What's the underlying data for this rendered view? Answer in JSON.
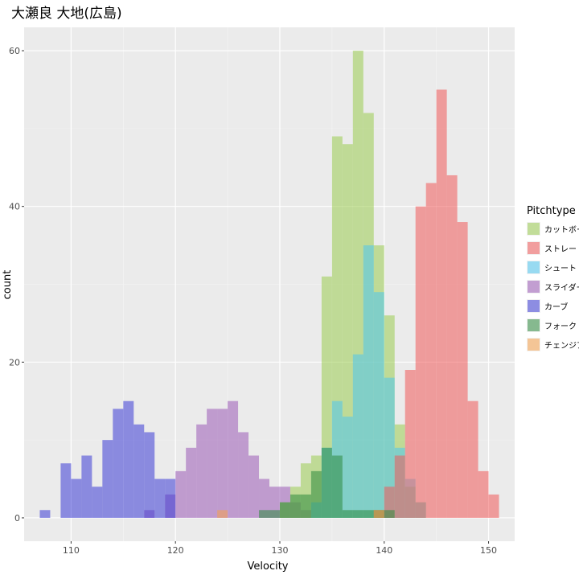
{
  "chart_data": {
    "type": "histogram",
    "title": "大瀬良 大地(広島)",
    "xlabel": "Velocity",
    "ylabel": "count",
    "xlim": [
      105.5,
      152.5
    ],
    "ylim": [
      -3,
      63
    ],
    "x_ticks": [
      110,
      120,
      130,
      140,
      150
    ],
    "y_ticks": [
      0,
      20,
      40,
      60
    ],
    "bin_width": 1,
    "grid": true,
    "legend": {
      "title": "Pitchtype",
      "position": "right"
    },
    "series": [
      {
        "name": "スライダー",
        "color": "#9b59b6",
        "bins": [
          [
            117.5,
            1
          ],
          [
            118.5,
            0
          ],
          [
            119.5,
            3
          ],
          [
            120.5,
            6
          ],
          [
            121.5,
            9
          ],
          [
            122.5,
            12
          ],
          [
            123.5,
            14
          ],
          [
            124.5,
            14
          ],
          [
            125.5,
            15
          ],
          [
            126.5,
            11
          ],
          [
            127.5,
            8
          ],
          [
            128.5,
            5
          ],
          [
            129.5,
            4
          ],
          [
            130.5,
            4
          ],
          [
            131.5,
            2
          ],
          [
            132.5,
            1
          ]
        ]
      },
      {
        "name": "カーブ",
        "color": "#3b3bd6",
        "bins": [
          [
            107.5,
            1
          ],
          [
            109.5,
            7
          ],
          [
            110.5,
            5
          ],
          [
            111.5,
            8
          ],
          [
            112.5,
            4
          ],
          [
            113.5,
            10
          ],
          [
            114.5,
            14
          ],
          [
            115.5,
            15
          ],
          [
            116.5,
            12
          ],
          [
            117.5,
            11
          ],
          [
            118.5,
            5
          ],
          [
            119.5,
            5
          ]
        ]
      },
      {
        "name": "カットボール",
        "color": "#9bcc50",
        "bins": [
          [
            130.5,
            2
          ],
          [
            131.5,
            4
          ],
          [
            132.5,
            7
          ],
          [
            133.5,
            8
          ],
          [
            134.5,
            31
          ],
          [
            135.5,
            49
          ],
          [
            136.5,
            48
          ],
          [
            137.5,
            60
          ],
          [
            138.5,
            52
          ],
          [
            139.5,
            35
          ],
          [
            140.5,
            26
          ],
          [
            141.5,
            12
          ],
          [
            142.5,
            4
          ],
          [
            143.5,
            2
          ]
        ]
      },
      {
        "name": "シュート",
        "color": "#4fc7f0",
        "bins": [
          [
            133.5,
            2
          ],
          [
            134.5,
            9
          ],
          [
            135.5,
            15
          ],
          [
            136.5,
            13
          ],
          [
            137.5,
            21
          ],
          [
            138.5,
            35
          ],
          [
            139.5,
            29
          ],
          [
            140.5,
            18
          ],
          [
            141.5,
            9
          ],
          [
            142.5,
            5
          ],
          [
            143.5,
            2
          ]
        ]
      },
      {
        "name": "ストレート",
        "color": "#f05a5a",
        "bins": [
          [
            139.5,
            1
          ],
          [
            140.5,
            4
          ],
          [
            141.5,
            8
          ],
          [
            142.5,
            19
          ],
          [
            143.5,
            40
          ],
          [
            144.5,
            43
          ],
          [
            145.5,
            55
          ],
          [
            146.5,
            44
          ],
          [
            147.5,
            38
          ],
          [
            148.5,
            15
          ],
          [
            149.5,
            6
          ],
          [
            150.5,
            3
          ]
        ]
      },
      {
        "name": "フォーク",
        "color": "#2e8b3e",
        "bins": [
          [
            128.5,
            1
          ],
          [
            129.5,
            1
          ],
          [
            130.5,
            2
          ],
          [
            131.5,
            3
          ],
          [
            132.5,
            3
          ],
          [
            133.5,
            6
          ],
          [
            134.5,
            9
          ],
          [
            135.5,
            8
          ],
          [
            136.5,
            1
          ],
          [
            137.5,
            1
          ],
          [
            138.5,
            1
          ],
          [
            139.5,
            1
          ],
          [
            140.5,
            1
          ]
        ]
      },
      {
        "name": "チェンジアップ",
        "color": "#f5a04a",
        "bins": [
          [
            124.5,
            1
          ],
          [
            139.5,
            1
          ]
        ]
      }
    ]
  },
  "legend_order": [
    "カットボール",
    "ストレート",
    "シュート",
    "スライダー",
    "カーブ",
    "フォーク",
    "チェンジアップ"
  ]
}
